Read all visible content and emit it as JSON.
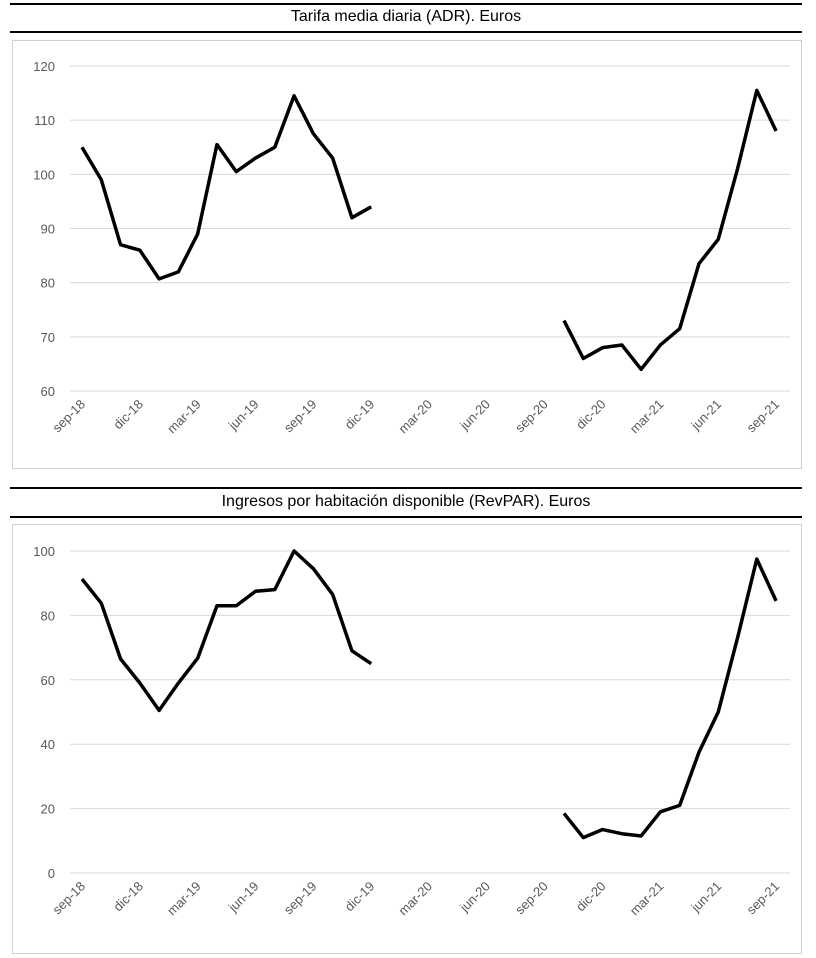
{
  "chart_data": [
    {
      "type": "line",
      "title": "Tarifa media diaria (ADR). Euros",
      "xlabel": "",
      "ylabel": "",
      "ylim": [
        60,
        120
      ],
      "yticks": [
        60,
        70,
        80,
        90,
        100,
        110,
        120
      ],
      "xtick_labels": [
        "sep-18",
        "dic-18",
        "mar-19",
        "jun-19",
        "sep-19",
        "dic-19",
        "mar-20",
        "jun-20",
        "sep-20",
        "dic-20",
        "mar-21",
        "jun-21",
        "sep-21"
      ],
      "grid": true,
      "series": [
        {
          "name": "ADR",
          "values": [
            105,
            99,
            87,
            86,
            80.7,
            82,
            89,
            105.5,
            100.5,
            103,
            105,
            114.5,
            107.5,
            103,
            92,
            94,
            null,
            null,
            null,
            null,
            null,
            null,
            null,
            null,
            null,
            73,
            66,
            68,
            68.5,
            64,
            68.5,
            71.5,
            83.5,
            88,
            101,
            115.5,
            108
          ]
        }
      ]
    },
    {
      "type": "line",
      "title": "Ingresos por habitación disponible (RevPAR). Euros",
      "xlabel": "",
      "ylabel": "",
      "ylim": [
        0,
        100
      ],
      "yticks": [
        0,
        20,
        40,
        60,
        80,
        100
      ],
      "xtick_labels": [
        "sep-18",
        "dic-18",
        "mar-19",
        "jun-19",
        "sep-19",
        "dic-19",
        "mar-20",
        "jun-20",
        "sep-20",
        "dic-20",
        "mar-21",
        "jun-21",
        "sep-21"
      ],
      "grid": true,
      "series": [
        {
          "name": "RevPAR",
          "values": [
            91.3,
            83.8,
            66.5,
            59,
            50.5,
            59,
            66.7,
            83,
            83,
            87.5,
            88,
            100,
            94.5,
            86.5,
            69,
            65,
            null,
            null,
            null,
            null,
            null,
            null,
            null,
            null,
            null,
            18.5,
            11,
            13.5,
            12.2,
            11.5,
            19,
            21,
            37.5,
            50,
            73,
            97.5,
            84.5
          ]
        }
      ]
    }
  ]
}
